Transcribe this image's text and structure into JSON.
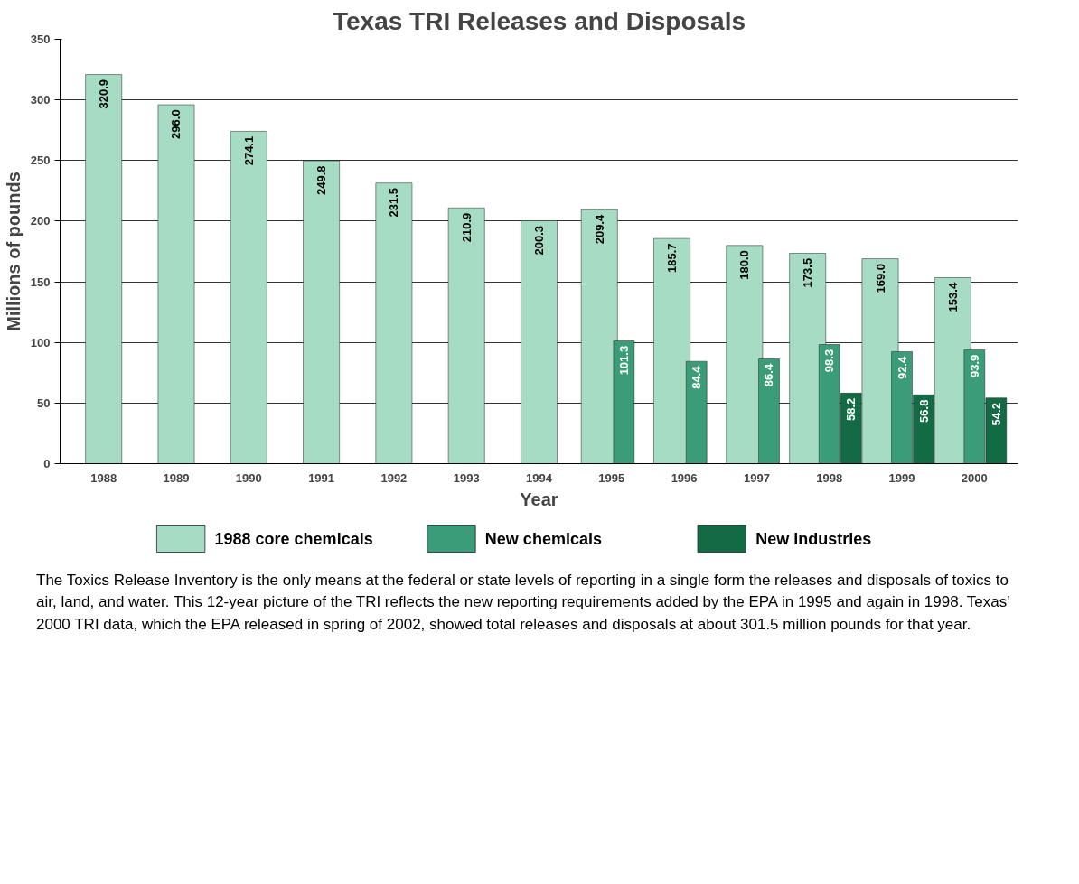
{
  "chart_data": {
    "type": "bar",
    "title": "Texas TRI Releases and Disposals",
    "xlabel": "Year",
    "ylabel": "Millions of pounds",
    "categories": [
      "1988",
      "1989",
      "1990",
      "1991",
      "1992",
      "1993",
      "1994",
      "1995",
      "1996",
      "1997",
      "1998",
      "1999",
      "2000"
    ],
    "series": [
      {
        "name": "1988 core chemicals",
        "color": "#a6dcc3",
        "values": [
          320.9,
          296.0,
          274.1,
          249.8,
          231.5,
          210.9,
          200.3,
          209.4,
          185.7,
          180.0,
          173.5,
          169.0,
          153.4
        ],
        "value_labels": [
          "320.9",
          "296.0",
          "274.1",
          "249.8",
          "231.5",
          "210.9",
          "200.3",
          "209.4",
          "185.7",
          "180.0",
          "173.5",
          "169.0",
          "153.4"
        ]
      },
      {
        "name": "New chemicals",
        "color": "#3a9c78",
        "values": [
          null,
          null,
          null,
          null,
          null,
          null,
          null,
          101.3,
          84.4,
          86.4,
          98.3,
          92.4,
          93.9
        ],
        "value_labels": [
          null,
          null,
          null,
          null,
          null,
          null,
          null,
          "101.3",
          "84.4",
          "86.4",
          "98.3",
          "92.4",
          "93.9"
        ]
      },
      {
        "name": "New industries",
        "color": "#136b45",
        "values": [
          null,
          null,
          null,
          null,
          null,
          null,
          null,
          null,
          null,
          null,
          58.2,
          56.8,
          54.2
        ],
        "value_labels": [
          null,
          null,
          null,
          null,
          null,
          null,
          null,
          null,
          null,
          null,
          "58.2",
          "56.8",
          "54.2"
        ]
      }
    ],
    "ylim": [
      0,
      350
    ],
    "yticks": [
      0,
      50,
      100,
      150,
      200,
      250,
      300,
      350
    ],
    "grid": "y",
    "legend": "bottom",
    "annotations": [
      "The Toxics Release Inventory is the only means at the federal or state levels of reporting in a single form the releases and disposals of toxics to air, land, and water. This 12-year picture of the TRI reflects the new reporting requirements added by the EPA in 1995 and again in 1998. Texas’ 2000 TRI data, which the EPA released in spring of 2002, showed total releases and disposals at about 301.5 million pounds for that year."
    ]
  }
}
